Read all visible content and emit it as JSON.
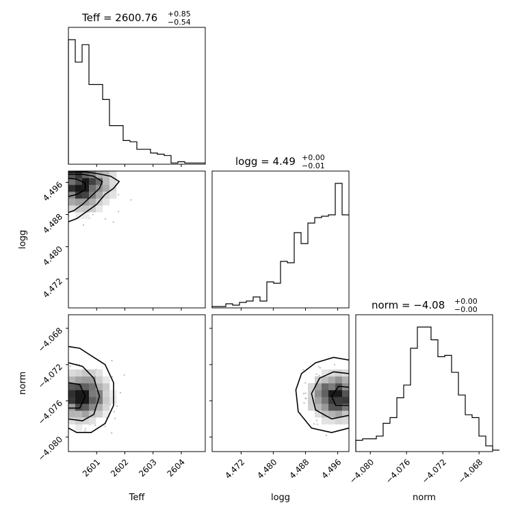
{
  "chart_data": {
    "type": "corner",
    "parameters": [
      "Teff",
      "logg",
      "norm"
    ],
    "titles": [
      {
        "param": "Teff",
        "base": "Teff = 2600.76",
        "plus": "+0.85",
        "minus": "−0.54"
      },
      {
        "param": "logg",
        "base": "logg = 4.49",
        "plus": "+0.00",
        "minus": "−0.01"
      },
      {
        "param": "norm",
        "base": "norm = −4.08",
        "plus": "+0.00",
        "minus": "−0.00"
      }
    ],
    "axis_labels": {
      "Teff": "Teff",
      "logg": "logg",
      "norm": "norm"
    },
    "ranges": {
      "Teff": [
        2600.0,
        2604.85
      ],
      "logg": [
        4.4648,
        4.4988
      ],
      "norm": [
        -4.0816,
        -4.0665
      ]
    },
    "ticks": {
      "Teff": {
        "values": [
          2601,
          2602,
          2603,
          2604
        ],
        "labels": [
          "2601",
          "2602",
          "2603",
          "2604"
        ]
      },
      "logg": {
        "values": [
          4.472,
          4.48,
          4.488,
          4.496
        ],
        "labels": [
          "4.472",
          "4.480",
          "4.488",
          "4.496"
        ]
      },
      "norm": {
        "values": [
          -4.08,
          -4.076,
          -4.072,
          -4.068
        ],
        "labels": [
          "−4.080",
          "−4.076",
          "−4.072",
          "−4.068"
        ]
      }
    },
    "histograms": {
      "Teff": {
        "edges_start": 2600.0,
        "bin_width": 0.2425,
        "counts": [
          100,
          82,
          96,
          64,
          64,
          52,
          31,
          31,
          19,
          18,
          12,
          12,
          9,
          8,
          7,
          1,
          2,
          1,
          1,
          1
        ]
      },
      "logg": {
        "edges_start": 4.4648,
        "bin_width": 0.0017,
        "counts": [
          1,
          1,
          3,
          2,
          4,
          5,
          8,
          5,
          19,
          18,
          34,
          33,
          55,
          47,
          62,
          66,
          67,
          68,
          91,
          68
        ]
      },
      "norm": {
        "edges_start": -4.0816,
        "bin_width": 0.000755,
        "counts": [
          8,
          9,
          9,
          11,
          20,
          24,
          38,
          47,
          73,
          88,
          88,
          79,
          67,
          68,
          56,
          40,
          26,
          24,
          11,
          4,
          1,
          1
        ]
      }
    },
    "joint": [
      {
        "x": "Teff",
        "y": "logg",
        "peak": [
          2600.5,
          4.4955
        ],
        "spread": [
          0.55,
          0.0035
        ],
        "note_contours": [
          [
            [
              2600.0,
              4.4985
            ],
            [
              2600.6,
              4.4986
            ],
            [
              2601.0,
              4.4982
            ],
            [
              2601.5,
              4.4975
            ],
            [
              2601.8,
              4.4962
            ],
            [
              2601.6,
              4.4945
            ],
            [
              2601.3,
              4.493
            ],
            [
              2601.0,
              4.4905
            ],
            [
              2600.6,
              4.4885
            ],
            [
              2600.3,
              4.487
            ],
            [
              2600.0,
              4.4862
            ]
          ],
          [
            [
              2600.0,
              4.498
            ],
            [
              2600.5,
              4.498
            ],
            [
              2600.9,
              4.4975
            ],
            [
              2601.2,
              4.4962
            ],
            [
              2601.1,
              4.4945
            ],
            [
              2600.8,
              4.4925
            ],
            [
              2600.5,
              4.4905
            ],
            [
              2600.2,
              4.489
            ],
            [
              2600.0,
              4.4885
            ]
          ],
          [
            [
              2600.0,
              4.497
            ],
            [
              2600.3,
              4.4968
            ],
            [
              2600.6,
              4.4958
            ],
            [
              2600.6,
              4.4942
            ],
            [
              2600.3,
              4.493
            ],
            [
              2600.0,
              4.4925
            ]
          ]
        ]
      },
      {
        "x": "Teff",
        "y": "norm",
        "peak": [
          2600.5,
          -4.0755
        ],
        "spread": [
          0.5,
          0.0015
        ],
        "note_contours": [
          [
            [
              2600.0,
              -4.07
            ],
            [
              2600.4,
              -4.0702
            ],
            [
              2600.9,
              -4.0712
            ],
            [
              2601.3,
              -4.072
            ],
            [
              2601.6,
              -4.074
            ],
            [
              2601.6,
              -4.0765
            ],
            [
              2601.3,
              -4.0785
            ],
            [
              2600.8,
              -4.0795
            ],
            [
              2600.3,
              -4.0795
            ],
            [
              2600.0,
              -4.079
            ]
          ],
          [
            [
              2600.0,
              -4.0718
            ],
            [
              2600.5,
              -4.0722
            ],
            [
              2600.9,
              -4.0735
            ],
            [
              2601.1,
              -4.0755
            ],
            [
              2600.9,
              -4.0775
            ],
            [
              2600.5,
              -4.0782
            ],
            [
              2600.0,
              -4.078
            ]
          ],
          [
            [
              2600.0,
              -4.074
            ],
            [
              2600.4,
              -4.0742
            ],
            [
              2600.6,
              -4.0755
            ],
            [
              2600.4,
              -4.0768
            ],
            [
              2600.0,
              -4.0768
            ]
          ]
        ]
      },
      {
        "x": "logg",
        "y": "norm",
        "peak": [
          4.4955,
          -4.0755
        ],
        "spread": [
          0.0035,
          0.0014
        ],
        "note_contours": [
          [
            [
              4.4988,
              -4.0715
            ],
            [
              4.495,
              -4.0712
            ],
            [
              4.4905,
              -4.0718
            ],
            [
              4.487,
              -4.073
            ],
            [
              4.4856,
              -4.0748
            ],
            [
              4.4862,
              -4.0772
            ],
            [
              4.4895,
              -4.079
            ],
            [
              4.4945,
              -4.0795
            ],
            [
              4.4988,
              -4.079
            ]
          ],
          [
            [
              4.4988,
              -4.073
            ],
            [
              4.495,
              -4.0728
            ],
            [
              4.4915,
              -4.0735
            ],
            [
              4.4895,
              -4.0752
            ],
            [
              4.4905,
              -4.077
            ],
            [
              4.4945,
              -4.078
            ],
            [
              4.4988,
              -4.0776
            ]
          ],
          [
            [
              4.4988,
              -4.0745
            ],
            [
              4.4962,
              -4.0744
            ],
            [
              4.4945,
              -4.0755
            ],
            [
              4.4955,
              -4.0765
            ],
            [
              4.4988,
              -4.0765
            ]
          ]
        ]
      }
    ]
  }
}
